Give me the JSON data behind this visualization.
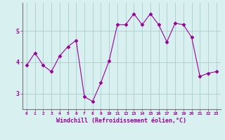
{
  "x": [
    0,
    1,
    2,
    3,
    4,
    5,
    6,
    7,
    8,
    9,
    10,
    11,
    12,
    13,
    14,
    15,
    16,
    17,
    18,
    19,
    20,
    21,
    22,
    23
  ],
  "y": [
    3.9,
    4.3,
    3.9,
    3.7,
    4.2,
    4.5,
    4.7,
    2.9,
    2.75,
    3.35,
    4.05,
    5.2,
    5.2,
    5.55,
    5.2,
    5.55,
    5.2,
    4.65,
    5.25,
    5.2,
    4.8,
    3.55,
    3.65,
    3.7
  ],
  "line_color": "#990099",
  "marker": "D",
  "marker_size": 2.5,
  "bg_color": "#d8f0f0",
  "grid_color": "#aacece",
  "xlabel": "Windchill (Refroidissement éolien,°C)",
  "xlabel_color": "#990099",
  "tick_color": "#990099",
  "yticks": [
    3,
    4,
    5
  ],
  "xtick_labels": [
    "0",
    "1",
    "2",
    "3",
    "4",
    "5",
    "6",
    "7",
    "8",
    "9",
    "10",
    "11",
    "12",
    "13",
    "14",
    "15",
    "16",
    "17",
    "18",
    "19",
    "20",
    "21",
    "22",
    "23"
  ],
  "ylim": [
    2.5,
    5.9
  ],
  "xlim": [
    -0.5,
    23.5
  ],
  "spine_color": "#777777"
}
